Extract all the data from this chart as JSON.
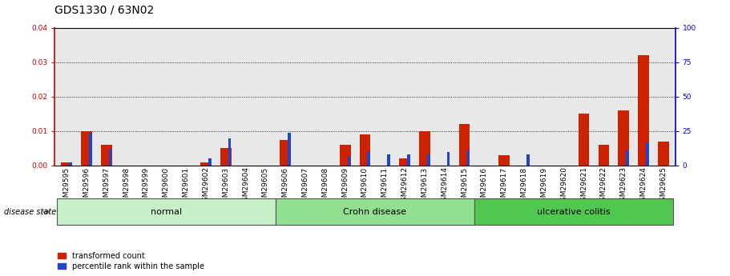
{
  "title": "GDS1330 / 63N02",
  "samples": [
    "GSM29595",
    "GSM29596",
    "GSM29597",
    "GSM29598",
    "GSM29599",
    "GSM29600",
    "GSM29601",
    "GSM29602",
    "GSM29603",
    "GSM29604",
    "GSM29605",
    "GSM29606",
    "GSM29607",
    "GSM29608",
    "GSM29609",
    "GSM29610",
    "GSM29611",
    "GSM29612",
    "GSM29613",
    "GSM29614",
    "GSM29615",
    "GSM29616",
    "GSM29617",
    "GSM29618",
    "GSM29619",
    "GSM29620",
    "GSM29621",
    "GSM29622",
    "GSM29623",
    "GSM29624",
    "GSM29625"
  ],
  "red_values": [
    0.001,
    0.01,
    0.006,
    0.0,
    0.0,
    0.0,
    0.0,
    0.001,
    0.005,
    0.0,
    0.0,
    0.0075,
    0.0,
    0.0,
    0.006,
    0.009,
    0.0,
    0.002,
    0.01,
    0.0,
    0.012,
    0.0,
    0.003,
    0.0,
    0.0,
    0.0,
    0.015,
    0.006,
    0.016,
    0.032,
    0.007
  ],
  "blue_percentile": [
    2.5,
    24,
    12,
    0,
    0,
    0,
    0,
    5,
    20,
    0,
    0,
    24,
    0,
    0,
    7,
    10,
    8,
    8,
    8,
    10,
    11,
    0,
    0,
    8,
    0,
    0,
    0,
    0,
    11,
    17,
    0
  ],
  "groups": [
    {
      "label": "normal",
      "start": 0,
      "end": 10,
      "color": "#c8f0c8"
    },
    {
      "label": "Crohn disease",
      "start": 11,
      "end": 20,
      "color": "#90e090"
    },
    {
      "label": "ulcerative colitis",
      "start": 21,
      "end": 30,
      "color": "#50c850"
    }
  ],
  "ylim_left": [
    0,
    0.04
  ],
  "ylim_right": [
    0,
    100
  ],
  "yticks_left": [
    0,
    0.01,
    0.02,
    0.03,
    0.04
  ],
  "yticks_right": [
    0,
    25,
    50,
    75,
    100
  ],
  "left_axis_color": "#cc0000",
  "right_axis_color": "#0000cc",
  "bar_color_red": "#cc2200",
  "bar_color_blue": "#2244cc",
  "background_color": "#ffffff",
  "plot_bg_color": "#e8e8e8",
  "title_fontsize": 10,
  "tick_fontsize": 6.5,
  "label_fontsize": 8
}
